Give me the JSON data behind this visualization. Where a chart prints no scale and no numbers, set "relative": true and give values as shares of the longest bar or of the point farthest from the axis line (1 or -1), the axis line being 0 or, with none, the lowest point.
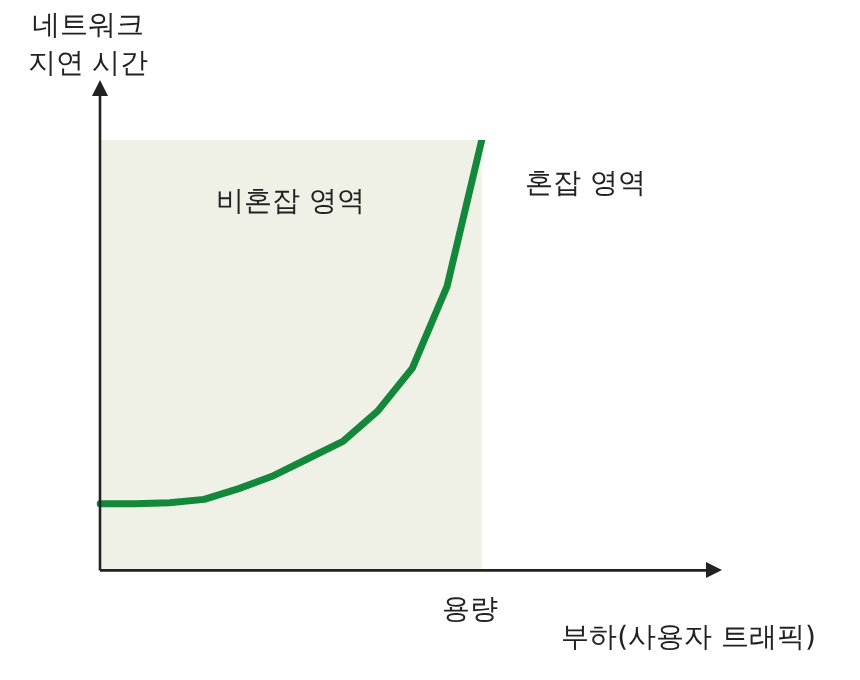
{
  "chart_data": {
    "type": "line",
    "relative": true,
    "xlabel": "부하(사용자 트래픽)",
    "ylabel": "네트워크\n지연 시간",
    "categories": [
      null,
      null,
      null,
      null,
      null,
      null,
      null,
      null,
      null,
      null,
      null,
      null,
      null,
      null,
      null,
      null,
      null,
      null
    ],
    "series": [
      {
        "color": "#13873a",
        "values": [
          0.155,
          0.155,
          0.157,
          0.165,
          0.19,
          0.22,
          0.26,
          0.3,
          0.37,
          0.47,
          0.66,
          1.0,
          null,
          null,
          null,
          null,
          null,
          null
        ]
      },
      {
        "type": "area",
        "name": "비혼잡 영역",
        "color": "#eff1e6",
        "values": [
          1,
          1,
          1,
          1,
          1,
          1,
          1,
          1,
          1,
          1,
          1,
          1,
          null,
          null,
          null,
          null,
          null,
          null
        ]
      }
    ],
    "annotations": [
      "혼잡 영역",
      "용량"
    ],
    "marker": "none",
    "line_style": "solid",
    "legend": false
  }
}
